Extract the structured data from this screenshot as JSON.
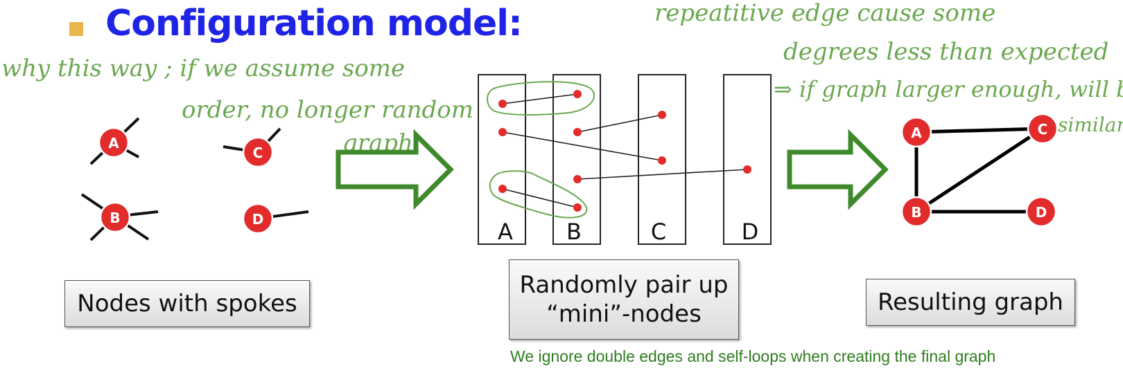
{
  "title": "Configuration model:",
  "colors": {
    "title": "#1f23e6",
    "bullet": "#e8b64c",
    "node": "#e22b2b",
    "arrow": "#3f8a2c",
    "handwriting": "#6aa84f",
    "footnote": "#2e7d1f"
  },
  "nodes_with_spokes": {
    "caption": "Nodes with spokes",
    "nodes": [
      {
        "label": "A",
        "degree": 3
      },
      {
        "label": "B",
        "degree": 4
      },
      {
        "label": "C",
        "degree": 2
      },
      {
        "label": "D",
        "degree": 1
      }
    ]
  },
  "pairing": {
    "caption_line1": "Randomly pair up",
    "caption_line2": "“mini”-nodes",
    "columns": [
      "A",
      "B",
      "C",
      "D"
    ]
  },
  "result": {
    "caption": "Resulting graph",
    "nodes": [
      "A",
      "B",
      "C",
      "D"
    ],
    "edges": [
      [
        "A",
        "C"
      ],
      [
        "A",
        "B"
      ],
      [
        "B",
        "C"
      ],
      [
        "B",
        "D"
      ]
    ]
  },
  "footnote": "We ignore double edges and self-loops when creating the final graph",
  "annotations": {
    "left_line1": "why this way ; if we assume some",
    "left_line2": "order,  no longer random",
    "left_line3": "graph",
    "right_line1": "repeatitive  edge  cause  some",
    "right_line2": "degrees  less  than  expected",
    "right_line3": "⇒ if graph larger enough, will be",
    "right_line4": "similar"
  }
}
